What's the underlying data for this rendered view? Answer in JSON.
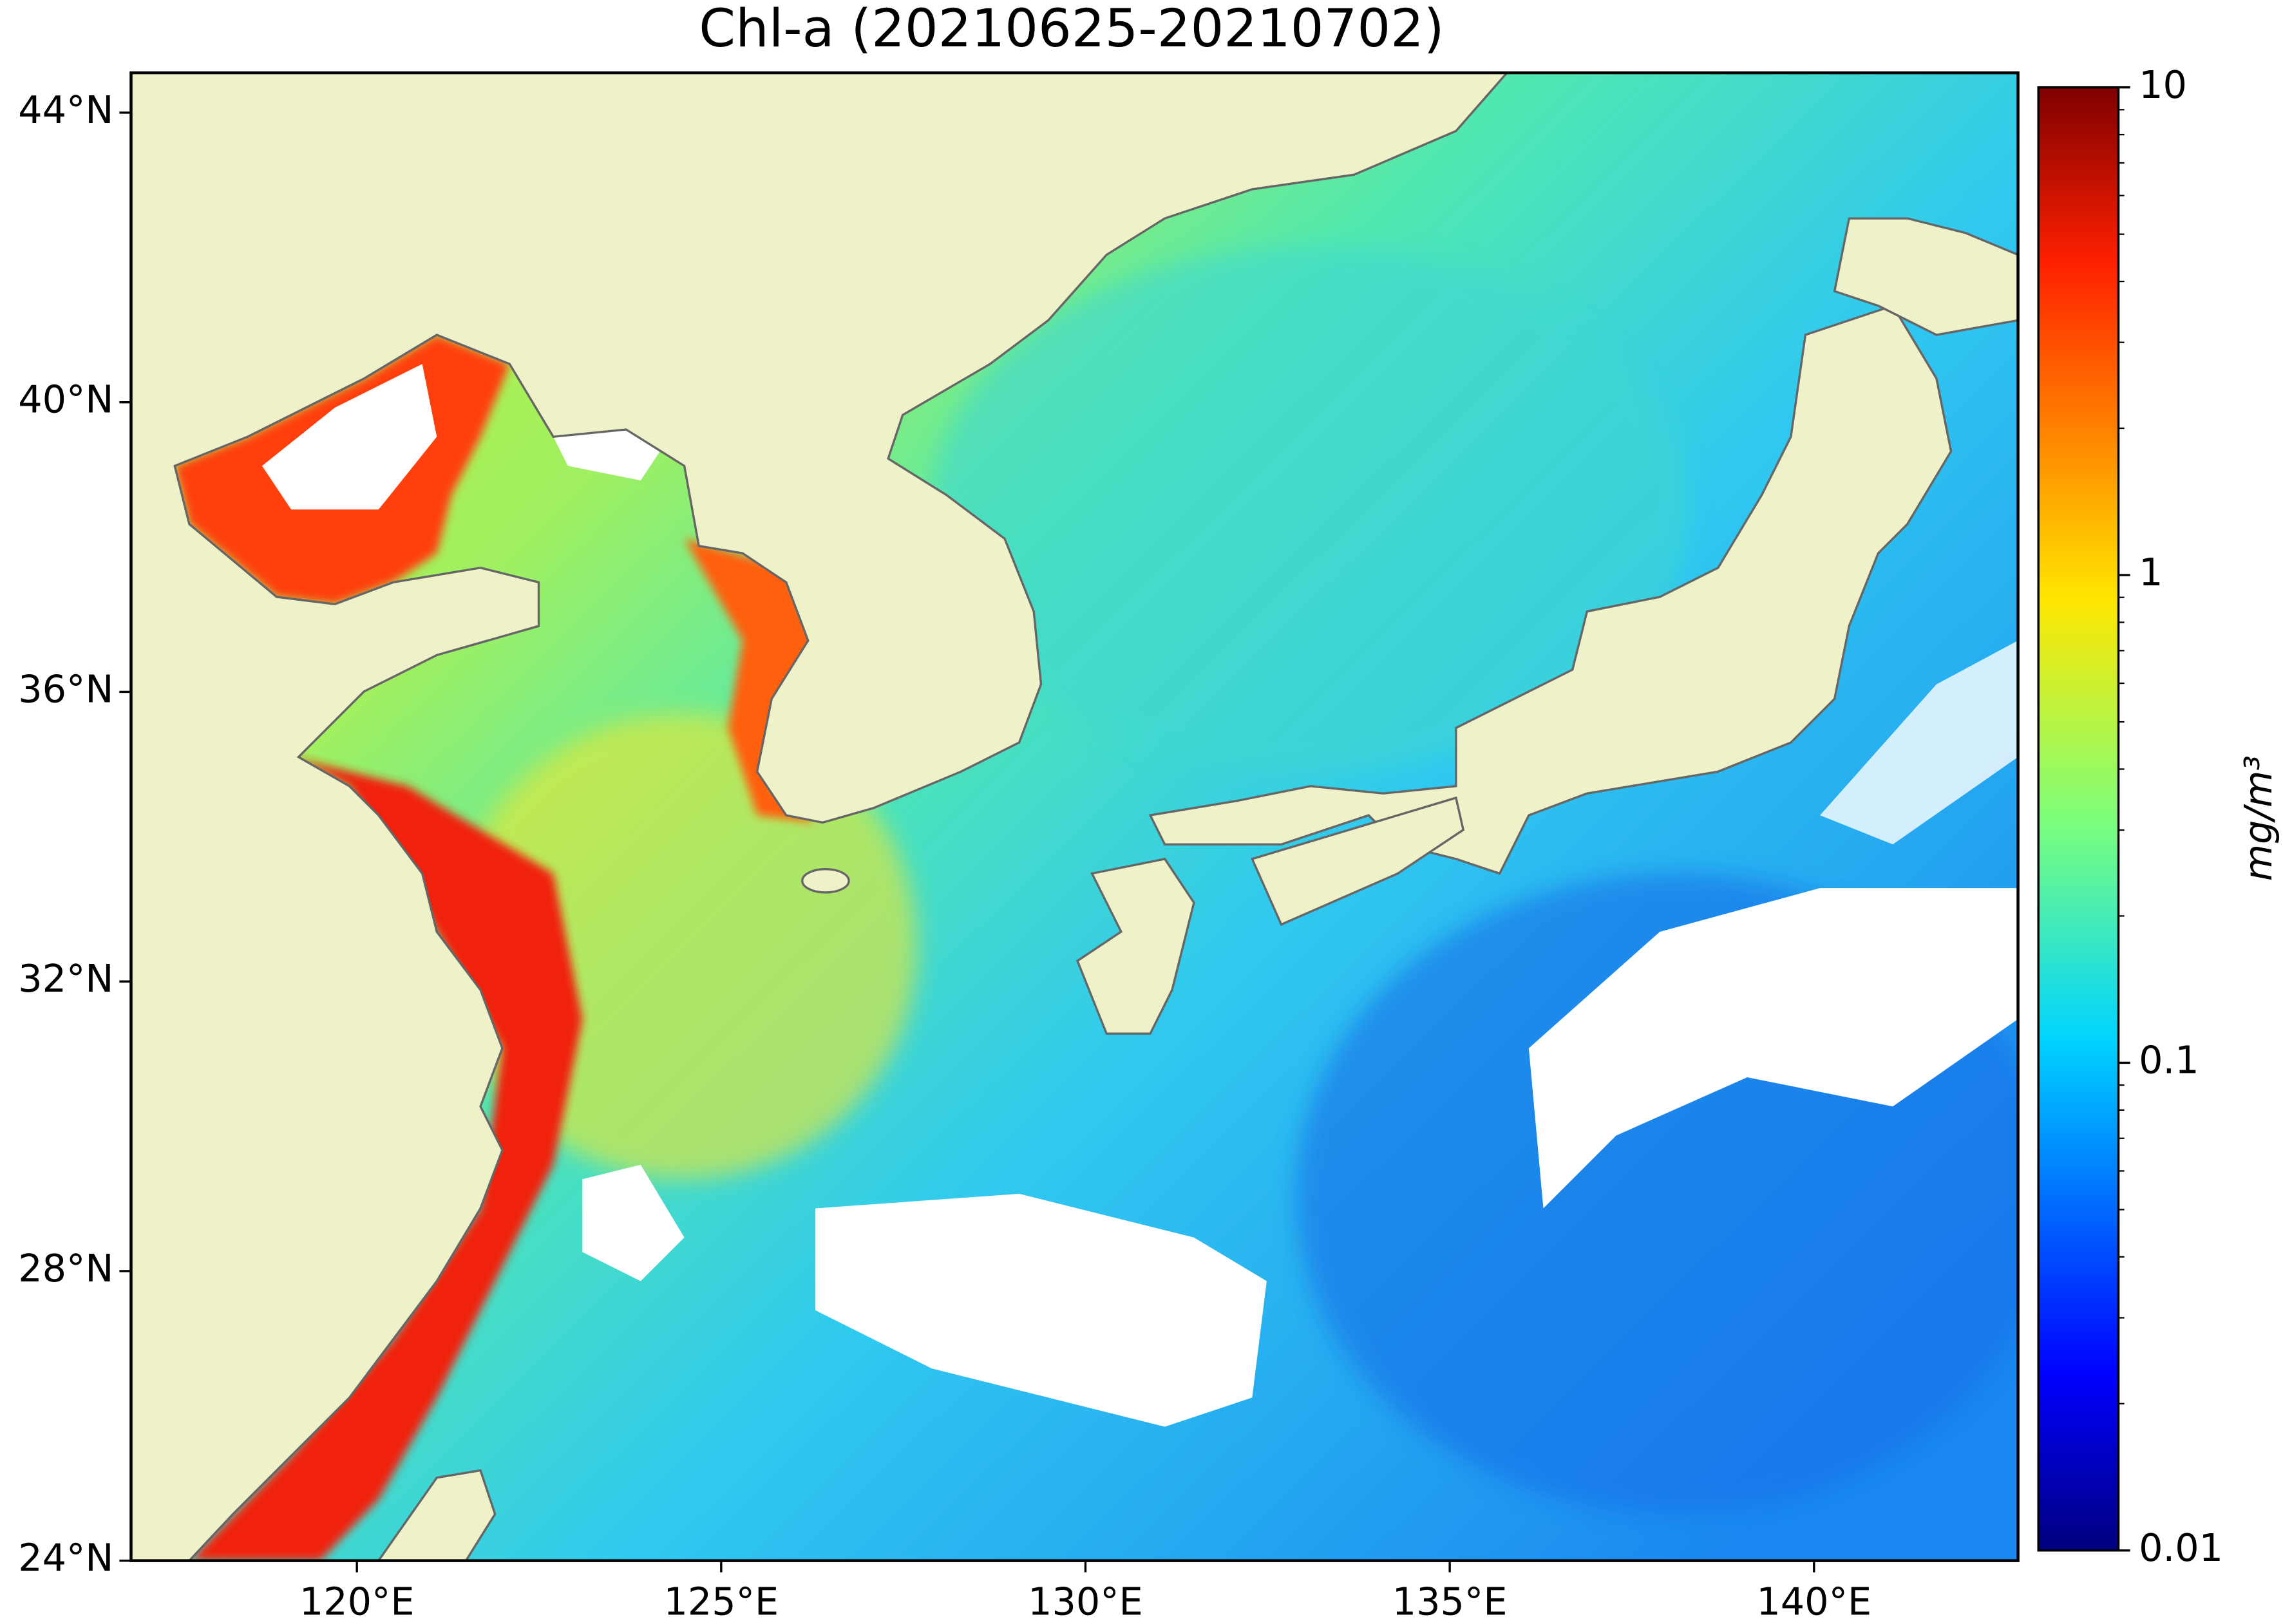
{
  "title": "Chl-a (20210625-20210702)",
  "map": {
    "xlim": [
      116.9,
      142.8
    ],
    "ylim": [
      24,
      44.55
    ],
    "xticks": [
      {
        "value": 120,
        "label": "120°E"
      },
      {
        "value": 125,
        "label": "125°E"
      },
      {
        "value": 130,
        "label": "130°E"
      },
      {
        "value": 135,
        "label": "135°E"
      },
      {
        "value": 140,
        "label": "140°E"
      }
    ],
    "yticks": [
      {
        "value": 24,
        "label": "24°N"
      },
      {
        "value": 28,
        "label": "28°N"
      },
      {
        "value": 32,
        "label": "32°N"
      },
      {
        "value": 36,
        "label": "36°N"
      },
      {
        "value": 40,
        "label": "40°N"
      },
      {
        "value": 44,
        "label": "44°N"
      }
    ]
  },
  "colorbar": {
    "scale": "log",
    "lim": [
      0.01,
      10
    ],
    "ticks": [
      0.01,
      0.1,
      1,
      10
    ],
    "minor_ticks": [
      0.02,
      0.03,
      0.04,
      0.05,
      0.06,
      0.07,
      0.08,
      0.09,
      0.2,
      0.3,
      0.4,
      0.5,
      0.6,
      0.7,
      0.8,
      0.9,
      2,
      3,
      4,
      5,
      6,
      7,
      8,
      9
    ],
    "label": "mg/m³"
  }
}
